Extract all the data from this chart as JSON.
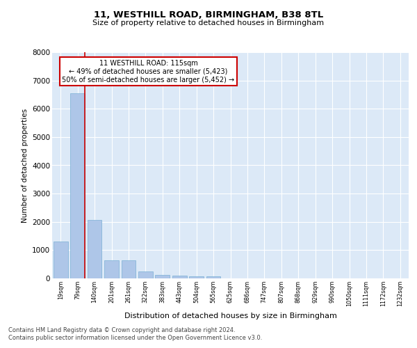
{
  "title1": "11, WESTHILL ROAD, BIRMINGHAM, B38 8TL",
  "title2": "Size of property relative to detached houses in Birmingham",
  "xlabel": "Distribution of detached houses by size in Birmingham",
  "ylabel": "Number of detached properties",
  "categories": [
    "19sqm",
    "79sqm",
    "140sqm",
    "201sqm",
    "261sqm",
    "322sqm",
    "383sqm",
    "443sqm",
    "504sqm",
    "565sqm",
    "625sqm",
    "686sqm",
    "747sqm",
    "807sqm",
    "868sqm",
    "929sqm",
    "990sqm",
    "1050sqm",
    "1111sqm",
    "1172sqm",
    "1232sqm"
  ],
  "values": [
    1300,
    6550,
    2070,
    640,
    640,
    255,
    130,
    110,
    85,
    85,
    0,
    0,
    0,
    0,
    0,
    0,
    0,
    0,
    0,
    0,
    0
  ],
  "bar_color": "#aec6e8",
  "bar_edgecolor": "#7aafd4",
  "vline_color": "#cc0000",
  "annotation_text": "11 WESTHILL ROAD: 115sqm\n← 49% of detached houses are smaller (5,423)\n50% of semi-detached houses are larger (5,452) →",
  "annotation_box_color": "#ffffff",
  "annotation_box_edgecolor": "#cc0000",
  "ylim": [
    0,
    8000
  ],
  "yticks": [
    0,
    1000,
    2000,
    3000,
    4000,
    5000,
    6000,
    7000,
    8000
  ],
  "footer1": "Contains HM Land Registry data © Crown copyright and database right 2024.",
  "footer2": "Contains public sector information licensed under the Open Government Licence v3.0.",
  "plot_bg_color": "#dce9f7",
  "fig_bg_color": "#ffffff",
  "grid_color": "#ffffff"
}
